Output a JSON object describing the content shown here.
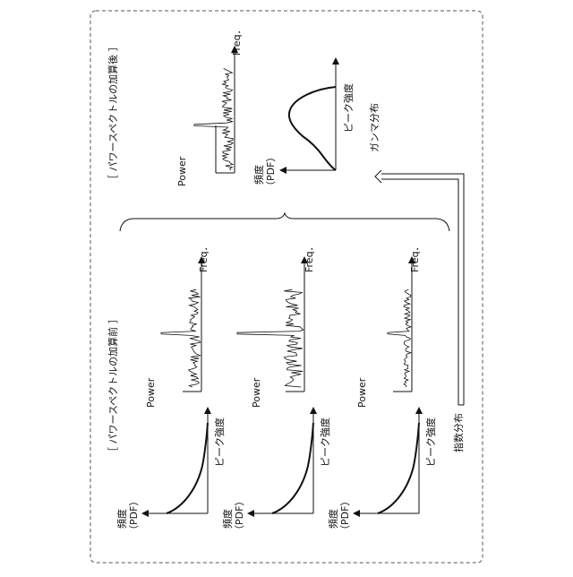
{
  "labels": {
    "before_section": "［ パワースペクトルの加算前 ］",
    "after_section": "［ パワースペクトルの加算後 ］",
    "freq": "Freq．",
    "power": "Power",
    "peak_intensity": "ピーク強度",
    "frequency": "頻度",
    "pdf": "（PDF）",
    "exponential": "指数分布",
    "gamma": "ガンマ分布"
  },
  "rows": [
    {
      "id": "row1",
      "spectrum": "high-noise"
    },
    {
      "id": "row2",
      "spectrum": "higher-noise"
    },
    {
      "id": "row3",
      "spectrum": "low-noise"
    }
  ],
  "summed": {
    "distribution": "gamma",
    "spectrum": "single-peak-low-noise"
  }
}
